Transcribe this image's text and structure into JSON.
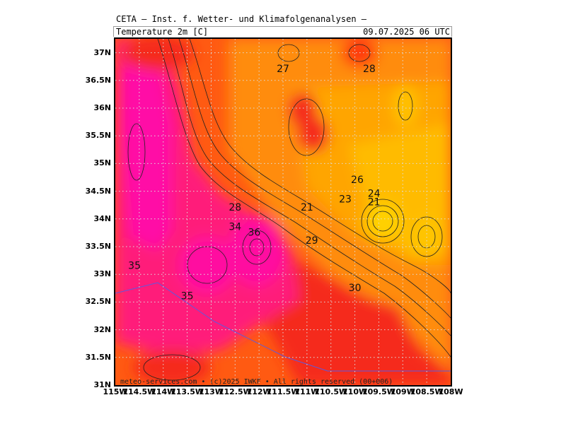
{
  "header": {
    "title": "CETA — Inst. f. Wetter- und Klimafolgenanalysen —",
    "parameter": "Temperature 2m [C]",
    "valid_time": "09.07.2025 06 UTC"
  },
  "map": {
    "lat_labels": [
      "37N",
      "36.5N",
      "36N",
      "35.5N",
      "35N",
      "34.5N",
      "34N",
      "33.5N",
      "33N",
      "32.5N",
      "32N",
      "31.5N",
      "31N"
    ],
    "lon_labels": [
      "115W",
      "114.5W",
      "114W",
      "113.5W",
      "113W",
      "112.5W",
      "112W",
      "111.5W",
      "111W",
      "110.5W",
      "110W",
      "109.5W",
      "109W",
      "108.5W",
      "108W"
    ],
    "contour_labels": [
      {
        "text": "27",
        "lon": -111.5,
        "lat": 36.7
      },
      {
        "text": "28",
        "lon": -109.7,
        "lat": 36.7
      },
      {
        "text": "26",
        "lon": -109.95,
        "lat": 34.7
      },
      {
        "text": "24",
        "lon": -109.6,
        "lat": 34.45
      },
      {
        "text": "23",
        "lon": -110.2,
        "lat": 34.35
      },
      {
        "text": "21",
        "lon": -109.6,
        "lat": 34.3
      },
      {
        "text": "21",
        "lon": -111.0,
        "lat": 34.2
      },
      {
        "text": "28",
        "lon": -112.5,
        "lat": 34.2
      },
      {
        "text": "34",
        "lon": -112.5,
        "lat": 33.85
      },
      {
        "text": "36",
        "lon": -112.1,
        "lat": 33.75
      },
      {
        "text": "29",
        "lon": -110.9,
        "lat": 33.6
      },
      {
        "text": "35",
        "lon": -114.6,
        "lat": 33.15
      },
      {
        "text": "35",
        "lon": -113.5,
        "lat": 32.6
      },
      {
        "text": "30",
        "lon": -110.0,
        "lat": 32.75
      }
    ],
    "colors": {
      "pink": "#ff1493",
      "magenta_red": "#ff2050",
      "red": "#f52a1a",
      "orange_red": "#ff5a12",
      "orange": "#ff8c0a",
      "amber": "#ffa500",
      "gold": "#ffc000",
      "contour": "#222222",
      "grid": "#dddddd",
      "border": "#5a5adf"
    }
  },
  "footer": {
    "credit": "meteo-services.com • (c)2025 IWKF • All rights reserved (00+006)"
  }
}
